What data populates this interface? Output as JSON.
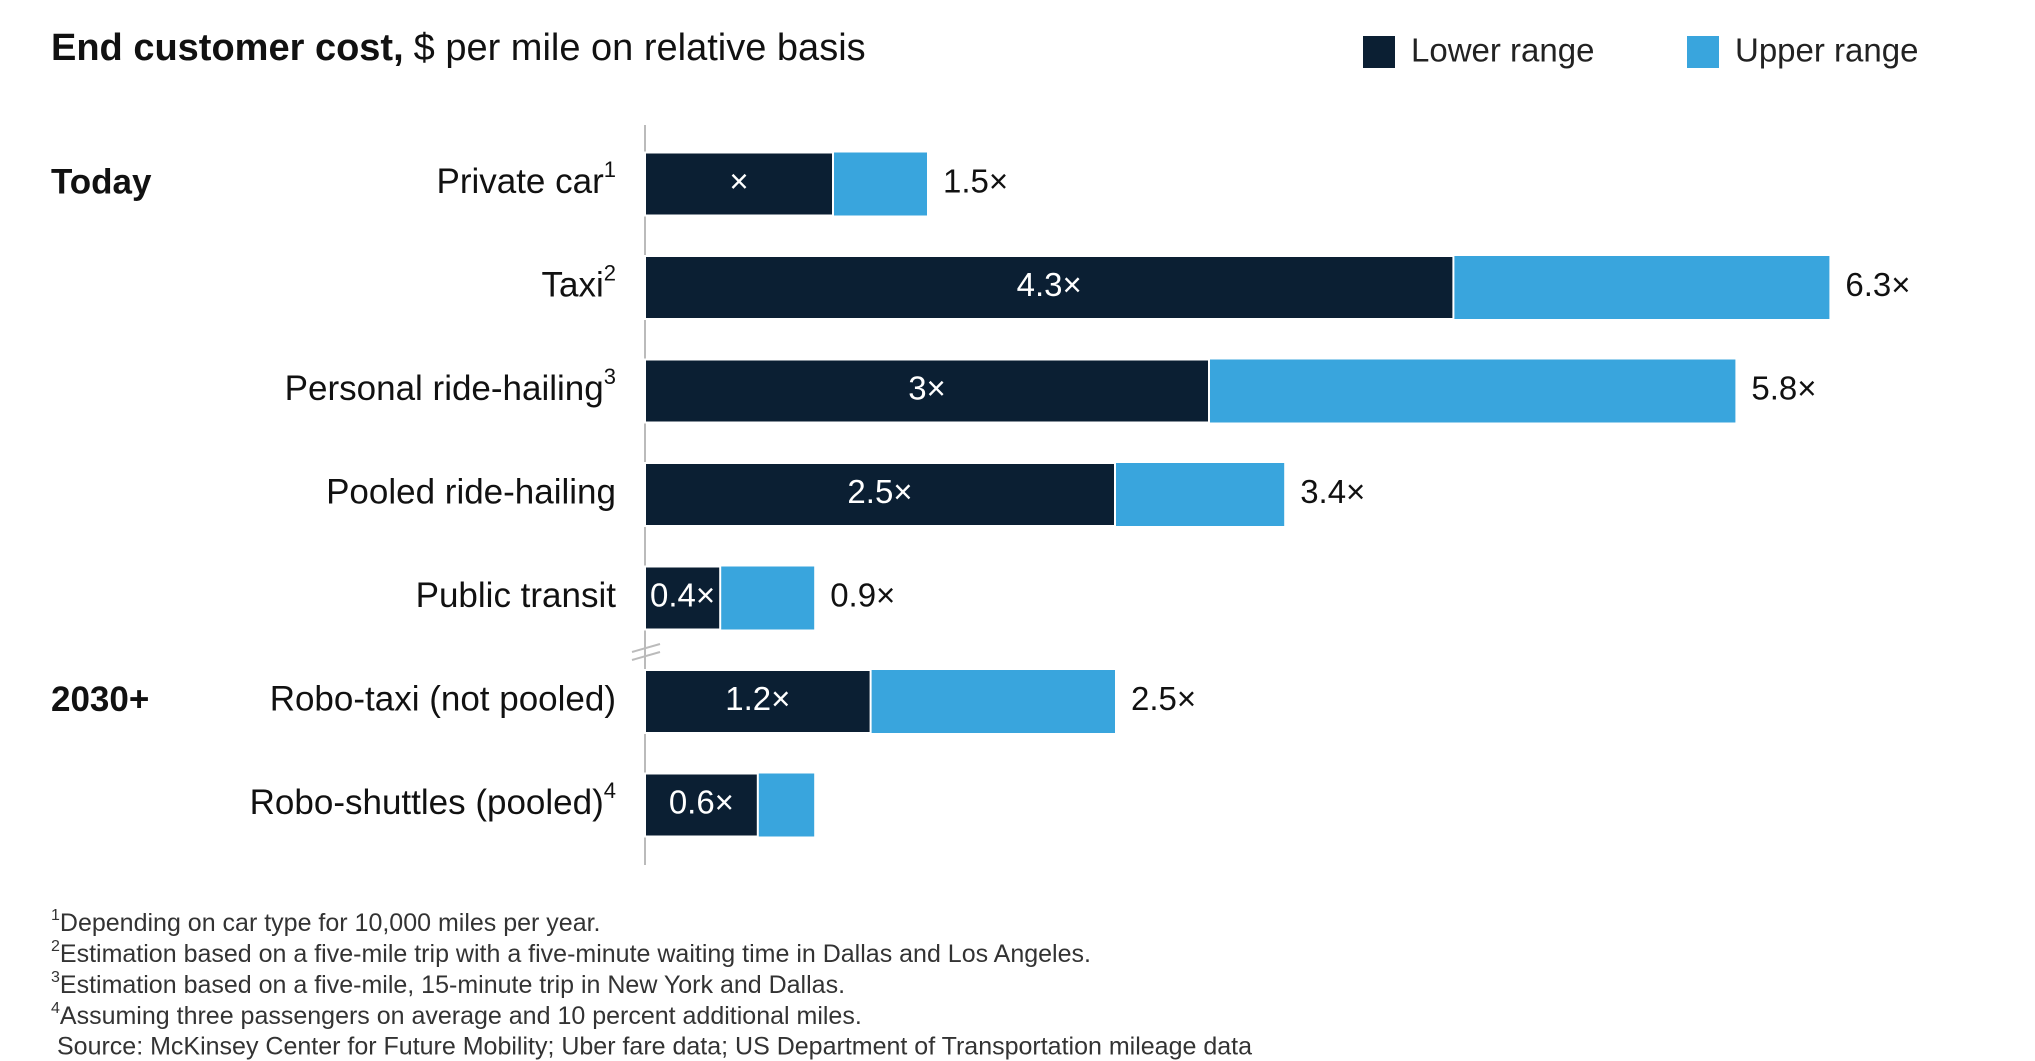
{
  "chart_data": {
    "type": "range_bar",
    "title_bold": "End customer cost,",
    "title_rest": "$ per mile on relative basis",
    "categories": [
      "Private car",
      "Taxi",
      "Personal ride-hailing",
      "Pooled ride-hailing",
      "Public transit",
      "Robo-taxi (not pooled)",
      "Robo-shuttles (pooled)"
    ],
    "category_notes": [
      "1",
      "2",
      "3",
      null,
      null,
      null,
      "4"
    ],
    "row_groups": [
      "Today",
      null,
      null,
      null,
      null,
      "2030+",
      null
    ],
    "series": [
      {
        "name": "Lower range",
        "color": "#0b1f33",
        "values": [
          1,
          4.3,
          3,
          2.5,
          0.4,
          1.2,
          0.6
        ],
        "value_labels": [
          "×",
          "4.3×",
          "3×",
          "2.5×",
          "0.4×",
          "1.2×",
          "0.6×"
        ]
      },
      {
        "name": "Upper range",
        "color": "#39a5dd",
        "values": [
          1.5,
          6.3,
          5.8,
          3.4,
          0.9,
          2.5,
          0.9
        ],
        "value_labels": [
          "1.5×",
          "6.3×",
          "5.8×",
          "3.4×",
          "0.9×",
          "2.5×",
          null
        ]
      }
    ],
    "xlim": [
      0,
      7
    ],
    "legend": "top-right",
    "footnotes": [
      {
        "mark": "1",
        "text": "Depending on car type for 10,000 miles per year."
      },
      {
        "mark": "2",
        "text": "Estimation based on a five-mile trip with a five-minute waiting time in Dallas and Los Angeles."
      },
      {
        "mark": "3",
        "text": "Estimation based on a five-mile, 15-minute trip in New York and Dallas."
      },
      {
        "mark": "4",
        "text": "Assuming three passengers on average and 10 percent additional miles."
      }
    ],
    "source": "Source: McKinsey Center for Future Mobility; Uber fare data; US Department of Transportation mileage data"
  }
}
